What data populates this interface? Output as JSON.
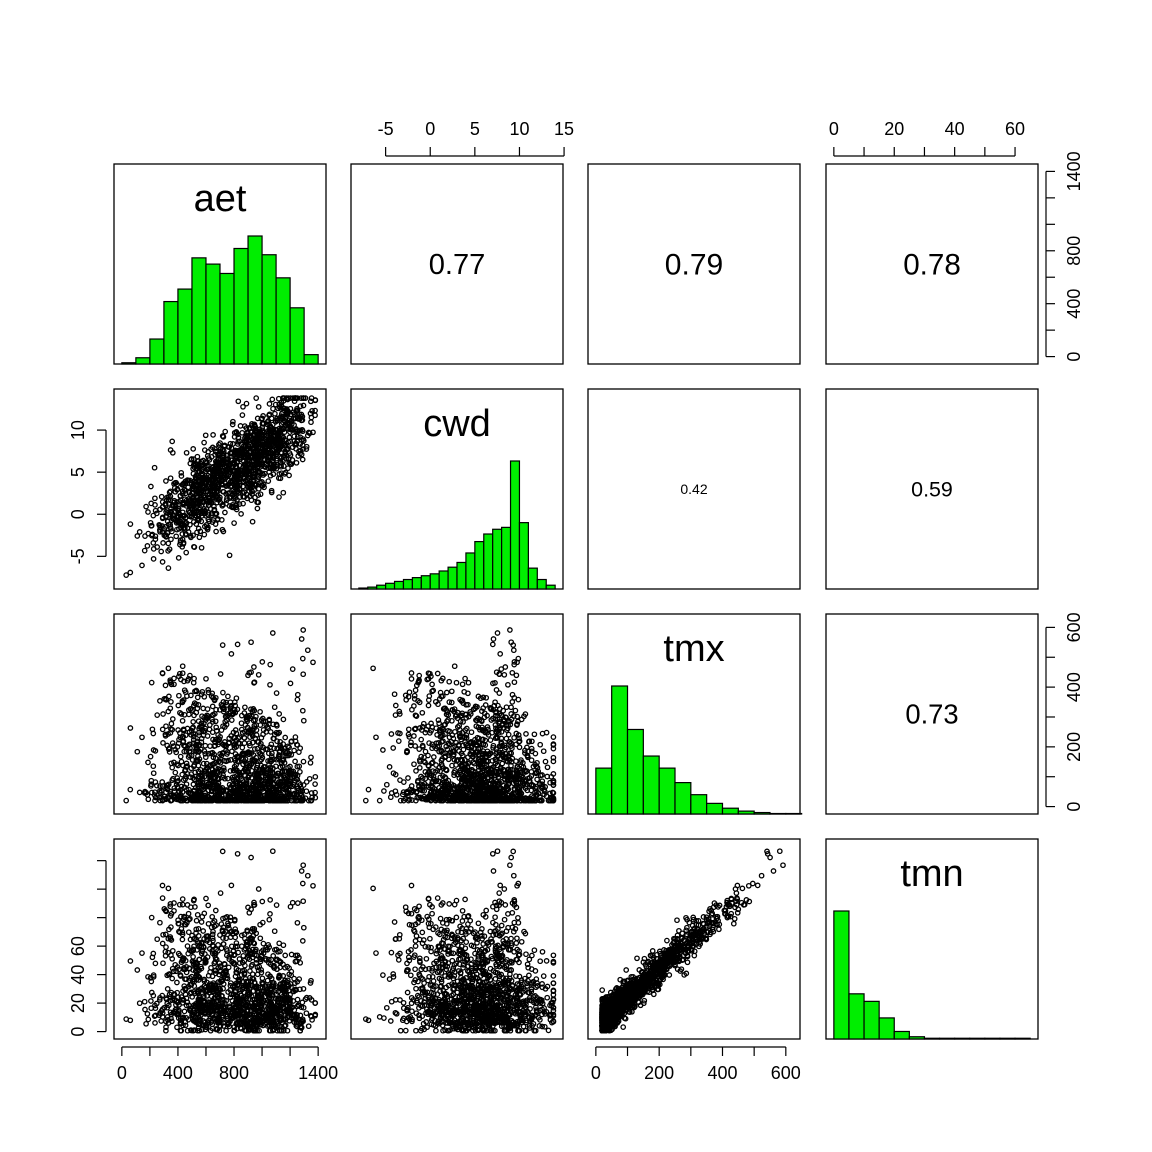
{
  "chart_data": {
    "type": "scatter",
    "subtype": "pairs-matrix",
    "variables": [
      {
        "name": "aet",
        "range": [
          0,
          1400
        ],
        "ticks": [
          0,
          200,
          400,
          600,
          800,
          1000,
          1200,
          1400
        ],
        "tick_labels": [
          "0",
          "400",
          "800",
          "1400"
        ],
        "labeled_ticks": [
          0,
          400,
          800,
          1400
        ],
        "histogram": {
          "bin_edges": [
            0,
            100,
            200,
            300,
            400,
            500,
            600,
            700,
            800,
            900,
            1000,
            1100,
            1200,
            1300,
            1400
          ],
          "counts": [
            2,
            10,
            40,
            100,
            120,
            170,
            160,
            145,
            185,
            205,
            175,
            138,
            90,
            15
          ]
        }
      },
      {
        "name": "cwd",
        "range": [
          -8,
          14
        ],
        "ticks": [
          -5,
          0,
          5,
          10,
          15
        ],
        "tick_labels": [
          "-5",
          "0",
          "5",
          "10",
          "15"
        ],
        "labeled_ticks": [
          -5,
          0,
          5,
          10,
          15
        ],
        "tick_labels_left": [
          "-5",
          "0",
          "5",
          "10"
        ],
        "labeled_ticks_left": [
          -5,
          0,
          5,
          10
        ],
        "histogram": {
          "bin_edges": [
            -8,
            -7,
            -6,
            -5,
            -4,
            -3,
            -2,
            -1,
            0,
            1,
            2,
            3,
            4,
            5,
            6,
            7,
            8,
            9,
            10,
            11,
            12,
            13,
            14
          ],
          "counts": [
            1,
            2,
            4,
            6,
            8,
            10,
            12,
            14,
            16,
            19,
            23,
            28,
            38,
            50,
            58,
            63,
            65,
            135,
            70,
            22,
            10,
            4
          ]
        }
      },
      {
        "name": "tmx",
        "range": [
          0,
          620
        ],
        "ticks": [
          0,
          100,
          200,
          300,
          400,
          500,
          600
        ],
        "tick_labels": [
          "0",
          "200",
          "400",
          "600"
        ],
        "labeled_ticks": [
          0,
          200,
          400,
          600
        ],
        "histogram": {
          "bin_edges": [
            0,
            50,
            100,
            150,
            200,
            250,
            300,
            350,
            400,
            450,
            500,
            550,
            600,
            650
          ],
          "counts": [
            95,
            265,
            175,
            120,
            95,
            65,
            40,
            22,
            12,
            6,
            3,
            1,
            1
          ]
        }
      },
      {
        "name": "tmn",
        "range": [
          0,
          65
        ],
        "ticks": [
          0,
          10,
          20,
          30,
          40,
          50,
          60
        ],
        "tick_labels": [
          "0",
          "20",
          "40",
          "60"
        ],
        "labeled_ticks": [
          0,
          20,
          40,
          60
        ],
        "histogram": {
          "bin_edges": [
            0,
            5,
            10,
            15,
            20,
            25,
            30,
            35,
            40,
            45,
            50,
            55,
            60,
            65
          ],
          "counts": [
            170,
            60,
            50,
            28,
            10,
            3,
            1,
            1,
            1,
            1,
            1,
            1,
            1
          ]
        }
      }
    ],
    "correlations": [
      {
        "row": 0,
        "col": 1,
        "value": "0.77"
      },
      {
        "row": 0,
        "col": 2,
        "value": "0.79"
      },
      {
        "row": 0,
        "col": 3,
        "value": "0.78"
      },
      {
        "row": 1,
        "col": 2,
        "value": "0.42"
      },
      {
        "row": 1,
        "col": 3,
        "value": "0.59"
      },
      {
        "row": 2,
        "col": 3,
        "value": "0.73"
      }
    ],
    "scatter_colors": {
      "points": "#000000"
    },
    "histogram_color": "#00ee00",
    "grid": false,
    "legend": "none"
  }
}
